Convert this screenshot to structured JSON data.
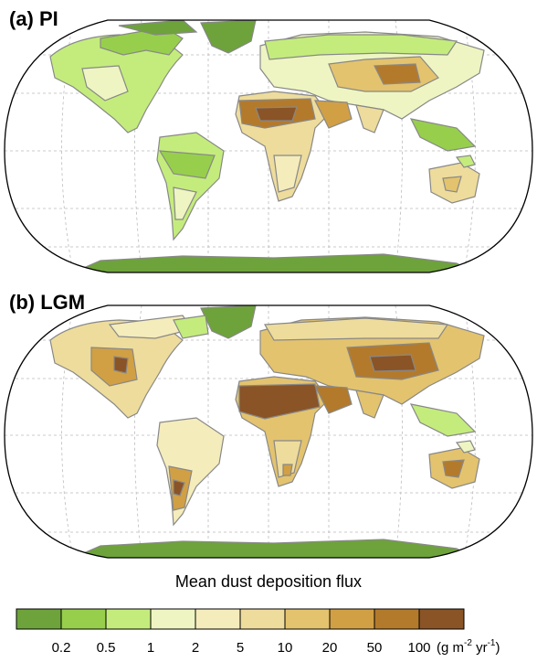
{
  "panels": [
    {
      "label": "(a) PI"
    },
    {
      "label": "(b) LGM"
    }
  ],
  "legend": {
    "title": "Mean dust deposition flux",
    "thresholds": [
      "0.2",
      "0.5",
      "1",
      "2",
      "5",
      "10",
      "20",
      "50",
      "100"
    ],
    "unit_prefix": "(g m",
    "unit_exp1": "-2",
    "unit_mid": " yr",
    "unit_exp2": "-1",
    "unit_suffix": ")",
    "colors": [
      "#6da33a",
      "#97cf4c",
      "#c4ec7c",
      "#eef5c2",
      "#f5ecbc",
      "#eedc9c",
      "#e3c36e",
      "#d1a044",
      "#b37a2c",
      "#8a5426"
    ]
  }
}
